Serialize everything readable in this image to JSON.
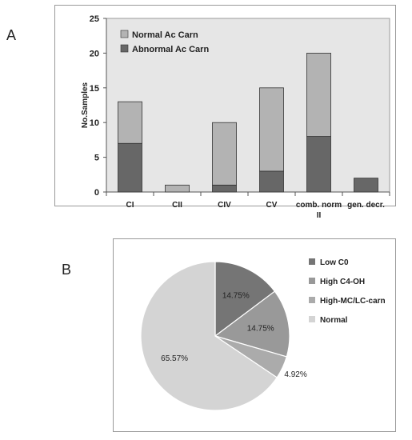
{
  "panels": {
    "a": "A",
    "b": "B"
  },
  "colors": {
    "normal": "#b3b3b3",
    "abnormal": "#676767",
    "plot_bg": "#e6e6e6",
    "pie_bg": "#ffffff"
  },
  "chart_data": [
    {
      "type": "bar",
      "stacked": true,
      "title": "",
      "xlabel": "",
      "ylabel": "No.Samples",
      "ylim": [
        0,
        25
      ],
      "yticks": [
        0,
        5,
        10,
        15,
        20,
        25
      ],
      "categories": [
        "CI",
        "CII",
        "CIV",
        "CV",
        "comb. norm II",
        "gen. decr."
      ],
      "series": [
        {
          "name": "Abnormal Ac Carn",
          "color": "#676767",
          "values": [
            7,
            0,
            1,
            3,
            8,
            2
          ]
        },
        {
          "name": "Normal Ac Carn",
          "color": "#b3b3b3",
          "values": [
            6,
            1,
            9,
            12,
            12,
            0
          ]
        }
      ],
      "legend_order": [
        "Normal Ac Carn",
        "Abnormal Ac Carn"
      ],
      "legend_position": "top-left",
      "grid": false
    },
    {
      "type": "pie",
      "title": "",
      "slices": [
        {
          "name": "Low C0",
          "value": 14.75,
          "label": "14.75%",
          "color": "#757575"
        },
        {
          "name": "High  C4-OH",
          "value": 14.75,
          "label": "14.75%",
          "color": "#999999"
        },
        {
          "name": "High-MC/LC-carn",
          "value": 4.92,
          "label": "4.92%",
          "color": "#ababab"
        },
        {
          "name": "Normal",
          "value": 65.57,
          "label": "65.57%",
          "color": "#d4d4d4"
        }
      ],
      "legend_position": "right"
    }
  ]
}
